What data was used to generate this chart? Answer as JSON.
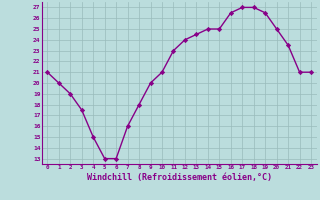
{
  "x": [
    0,
    1,
    2,
    3,
    4,
    5,
    6,
    7,
    8,
    9,
    10,
    11,
    12,
    13,
    14,
    15,
    16,
    17,
    18,
    19,
    20,
    21,
    22,
    23
  ],
  "y": [
    21,
    20,
    19,
    17.5,
    15,
    13,
    13,
    16,
    18,
    20,
    21,
    23,
    24,
    24.5,
    25,
    25,
    26.5,
    27,
    27,
    26.5,
    25,
    23.5,
    21,
    21
  ],
  "line_color": "#880088",
  "marker": "D",
  "markersize": 2.2,
  "linewidth": 1.0,
  "bg_color": "#bbdddd",
  "grid_color": "#99bbbb",
  "xlabel": "Windchill (Refroidissement éolien,°C)",
  "xlabel_fontsize": 6.0,
  "ytick_labels": [
    "13",
    "14",
    "15",
    "16",
    "17",
    "18",
    "19",
    "20",
    "21",
    "22",
    "23",
    "24",
    "25",
    "26",
    "27"
  ],
  "ytick_values": [
    13,
    14,
    15,
    16,
    17,
    18,
    19,
    20,
    21,
    22,
    23,
    24,
    25,
    26,
    27
  ],
  "xtick_labels": [
    "0",
    "1",
    "2",
    "3",
    "4",
    "5",
    "6",
    "7",
    "8",
    "9",
    "10",
    "11",
    "12",
    "13",
    "14",
    "15",
    "16",
    "17",
    "18",
    "19",
    "20",
    "21",
    "22",
    "23"
  ],
  "ylim": [
    12.5,
    27.5
  ],
  "xlim": [
    -0.5,
    23.5
  ]
}
